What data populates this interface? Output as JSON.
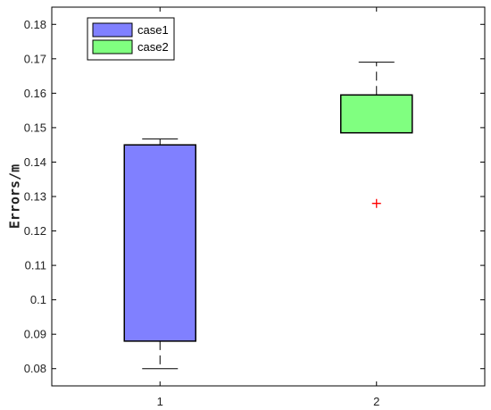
{
  "chart_data": {
    "type": "box",
    "title": "",
    "xlabel": "",
    "ylabel": "Errors/m",
    "categories": [
      "1",
      "2"
    ],
    "ylim": [
      0.075,
      0.185
    ],
    "y_ticks": [
      "0.08",
      "0.09",
      "0.1",
      "0.11",
      "0.12",
      "0.13",
      "0.14",
      "0.15",
      "0.16",
      "0.17",
      "0.18"
    ],
    "grid": false,
    "legend_position": "top-left",
    "series": [
      {
        "name": "case1",
        "category": "1",
        "color": "#8080ff",
        "whisker_low": 0.08,
        "q1": 0.088,
        "q3": 0.145,
        "whisker_high": 0.1467,
        "outliers": []
      },
      {
        "name": "case2",
        "category": "2",
        "color": "#80ff80",
        "whisker_low": 0.1485,
        "q1": 0.1485,
        "q3": 0.1595,
        "whisker_high": 0.169,
        "outliers": [
          0.128
        ]
      }
    ],
    "outlier_color": "#ff0000"
  }
}
